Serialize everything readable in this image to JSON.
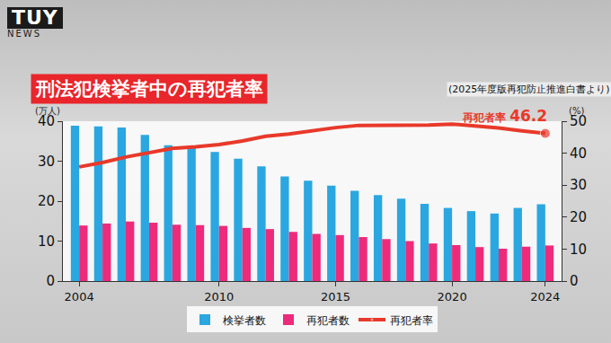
{
  "logo": {
    "text": "TUY",
    "subtext": "NEWS"
  },
  "chart_data": {
    "type": "bar",
    "title": "刑法犯検挙者中の再犯者率",
    "subtitle": "(2025年度版再犯防止推進白書より)",
    "ylabel": "(万人)",
    "y2label": "(%)",
    "x": [
      2004,
      2005,
      2006,
      2007,
      2008,
      2009,
      2010,
      2011,
      2012,
      2013,
      2014,
      2015,
      2016,
      2017,
      2018,
      2019,
      2020,
      2021,
      2022,
      2023,
      2024
    ],
    "xlim": [
      2003.3,
      2024.7
    ],
    "xticks": [
      2004,
      2010,
      2015,
      2020,
      2024
    ],
    "ylim": [
      0,
      40
    ],
    "yticks": [
      0,
      10,
      20,
      30,
      40
    ],
    "y2lim": [
      0,
      50
    ],
    "y2ticks": [
      0,
      10,
      20,
      30,
      40,
      50
    ],
    "grid": false,
    "legend": "bottom",
    "series": [
      {
        "name": "検挙者数",
        "type": "bar",
        "color": "#2aa7e0",
        "values": [
          38.9,
          38.7,
          38.4,
          36.6,
          34.0,
          33.3,
          32.3,
          30.6,
          28.7,
          26.2,
          25.1,
          23.9,
          22.6,
          21.5,
          20.6,
          19.3,
          18.3,
          17.5,
          16.9,
          18.3,
          19.2
        ]
      },
      {
        "name": "再犯者数",
        "type": "bar",
        "color": "#ee2a7b",
        "values": [
          13.9,
          14.4,
          14.9,
          14.6,
          14.1,
          14.0,
          13.8,
          13.3,
          13.0,
          12.3,
          11.8,
          11.5,
          11.0,
          10.5,
          10.0,
          9.4,
          9.0,
          8.5,
          8.1,
          8.6,
          8.9
        ]
      },
      {
        "name": "再犯者率",
        "type": "line",
        "color": "#e8392a",
        "axis": "y2",
        "line_style": "solid",
        "values": [
          35.7,
          37.1,
          38.8,
          40.1,
          41.5,
          42.0,
          42.7,
          43.8,
          45.3,
          46.0,
          47.1,
          48.0,
          48.7,
          48.7,
          48.8,
          48.8,
          49.1,
          48.6,
          47.9,
          47.0,
          46.2
        ]
      }
    ],
    "annotations": [
      {
        "label": "再犯者率",
        "x": 2024,
        "y": 46.2,
        "axis": "y2"
      }
    ]
  }
}
